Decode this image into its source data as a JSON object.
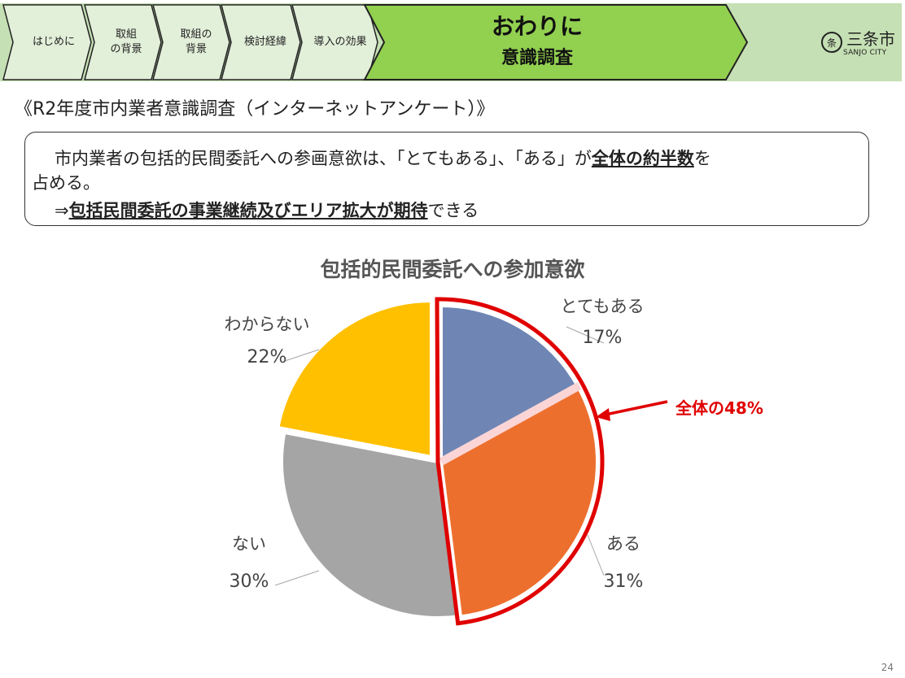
{
  "nav": {
    "steps": [
      {
        "label": "はじめに"
      },
      {
        "label": "取組\nの背景"
      },
      {
        "label": "取組の\n背景"
      },
      {
        "label": "検討経緯"
      },
      {
        "label": "導入の効果"
      }
    ],
    "active": {
      "line1": "おわりに",
      "line2": "意識調査"
    },
    "colors": {
      "step_fill": "#e2efd9",
      "active_fill": "#92d050",
      "band_fill": "#c5e0b4"
    }
  },
  "logo": {
    "name": "三条市",
    "sub": "SANJO CITY"
  },
  "survey_title": "《R2年度市内業者意識調査（インターネットアンケート）》",
  "summary": {
    "line1_a": "市内業者の包括的民間委託への参画意欲は、「とてもある」、「ある」が",
    "line1_b": "全体の約半数",
    "line1_c": "を",
    "line2": "占める。",
    "line3_a": "⇒",
    "line3_b": "包括民間委託の事業継続及びエリア拡大が期待",
    "line3_c": "できる"
  },
  "chart_data": {
    "type": "pie",
    "title": "包括的民間委託への参加意欲",
    "slices": [
      {
        "name": "とてもある",
        "value": 17,
        "label": "17%",
        "color": "#6f86b5"
      },
      {
        "name": "ある",
        "value": 31,
        "label": "31%",
        "color": "#ed6f2e"
      },
      {
        "name": "ない",
        "value": 30,
        "label": "30%",
        "color": "#a5a5a5"
      },
      {
        "name": "わからない",
        "value": 22,
        "label": "22%",
        "color": "#ffc000"
      }
    ],
    "callout": {
      "text": "全体の48%",
      "color": "#e00000"
    }
  },
  "page_number": "24"
}
